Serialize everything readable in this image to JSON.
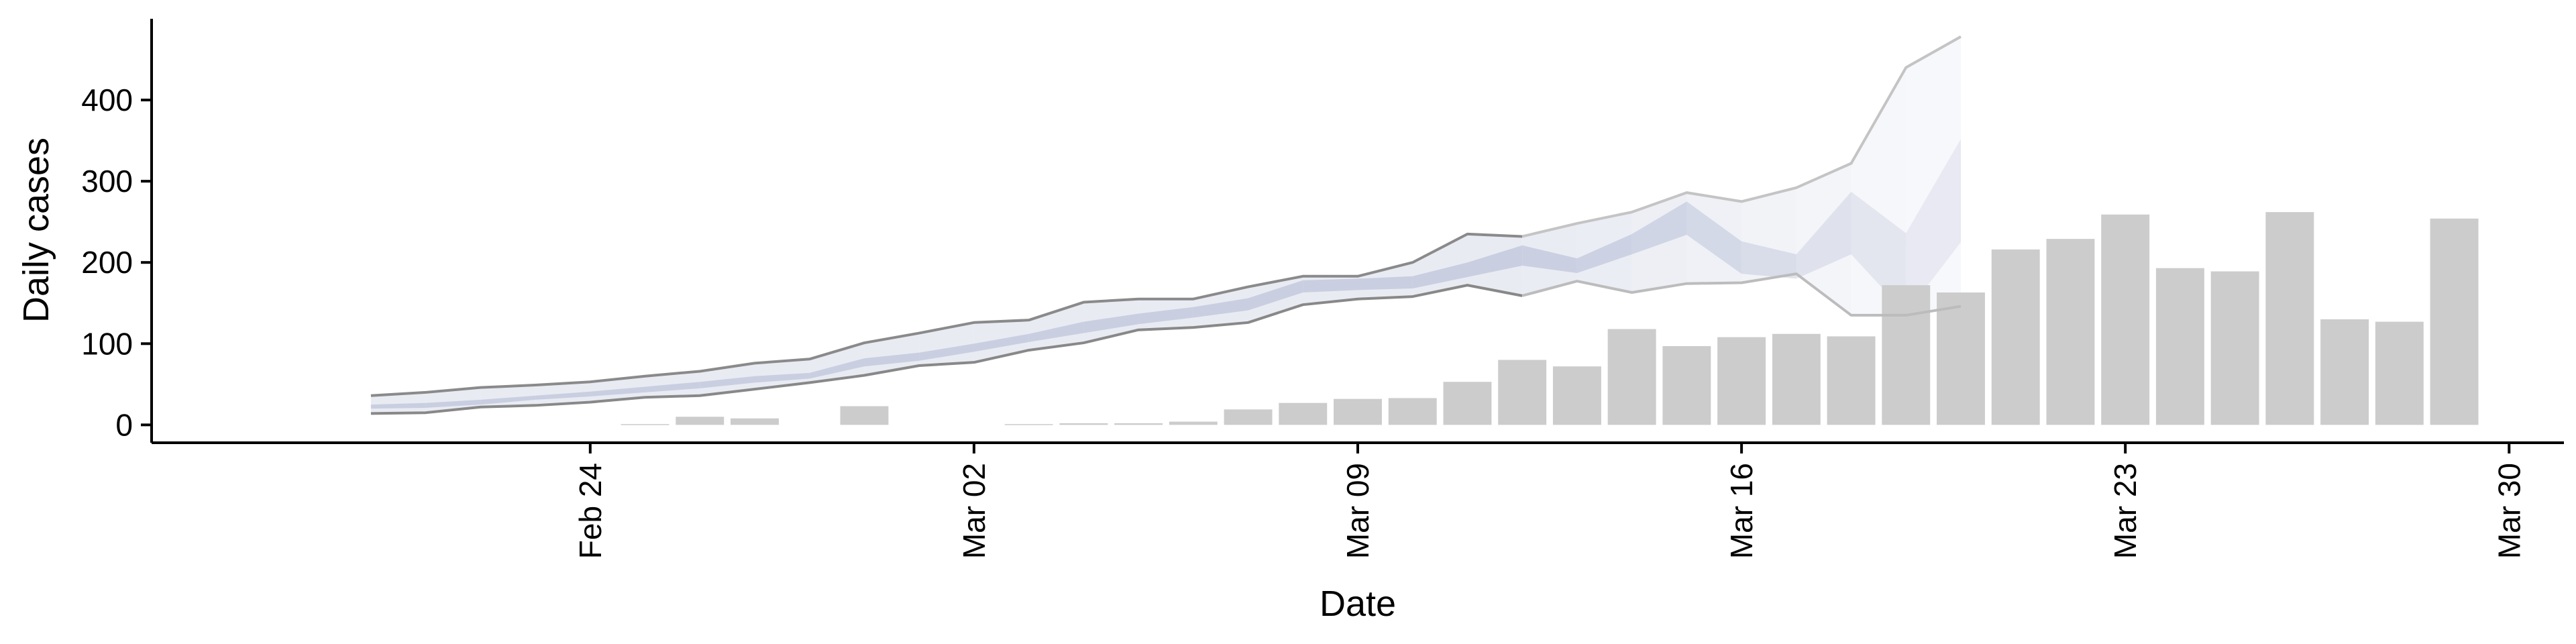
{
  "chart_data": {
    "type": "bar",
    "title": "",
    "xlabel": "Date",
    "ylabel": "Daily cases",
    "x_range": [
      "2020-02-16",
      "2020-03-31"
    ],
    "ylim": [
      -22,
      500
    ],
    "x_ticks": [
      {
        "date": "2020-02-24",
        "label": "Feb 24"
      },
      {
        "date": "2020-03-02",
        "label": "Mar 02"
      },
      {
        "date": "2020-03-09",
        "label": "Mar 09"
      },
      {
        "date": "2020-03-16",
        "label": "Mar 16"
      },
      {
        "date": "2020-03-23",
        "label": "Mar 23"
      },
      {
        "date": "2020-03-30",
        "label": "Mar 30"
      }
    ],
    "y_ticks": [
      0,
      100,
      200,
      300,
      400
    ],
    "grid": false,
    "colors": {
      "bars": "#cccccc",
      "band_outer": "#d6dae8",
      "band_inner": "#b9c0d8",
      "line_lower": "#888888",
      "line_upper": "#8a8a8a",
      "line_upper_late": "#c4c4c4",
      "line_lower_late": "#bcbcbc",
      "axis": "#000000"
    },
    "bars": [
      {
        "date": "2020-02-25",
        "value": 1
      },
      {
        "date": "2020-02-26",
        "value": 10
      },
      {
        "date": "2020-02-27",
        "value": 8
      },
      {
        "date": "2020-02-29",
        "value": 23
      },
      {
        "date": "2020-03-03",
        "value": 1
      },
      {
        "date": "2020-03-04",
        "value": 2
      },
      {
        "date": "2020-03-05",
        "value": 2
      },
      {
        "date": "2020-03-06",
        "value": 4
      },
      {
        "date": "2020-03-07",
        "value": 19
      },
      {
        "date": "2020-03-08",
        "value": 27
      },
      {
        "date": "2020-03-09",
        "value": 32
      },
      {
        "date": "2020-03-10",
        "value": 33
      },
      {
        "date": "2020-03-11",
        "value": 53
      },
      {
        "date": "2020-03-12",
        "value": 80
      },
      {
        "date": "2020-03-13",
        "value": 72
      },
      {
        "date": "2020-03-14",
        "value": 118
      },
      {
        "date": "2020-03-15",
        "value": 97
      },
      {
        "date": "2020-03-16",
        "value": 108
      },
      {
        "date": "2020-03-17",
        "value": 112
      },
      {
        "date": "2020-03-18",
        "value": 109
      },
      {
        "date": "2020-03-19",
        "value": 172
      },
      {
        "date": "2020-03-20",
        "value": 163
      },
      {
        "date": "2020-03-21",
        "value": 216
      },
      {
        "date": "2020-03-22",
        "value": 229
      },
      {
        "date": "2020-03-23",
        "value": 259
      },
      {
        "date": "2020-03-24",
        "value": 193
      },
      {
        "date": "2020-03-25",
        "value": 189
      },
      {
        "date": "2020-03-26",
        "value": 262
      },
      {
        "date": "2020-03-27",
        "value": 130
      },
      {
        "date": "2020-03-28",
        "value": 127
      },
      {
        "date": "2020-03-29",
        "value": 254
      }
    ],
    "band": [
      {
        "date": "2020-02-20",
        "lo": 14,
        "hi": 36,
        "inner_lo": 20,
        "inner_hi": 25,
        "fade": 1
      },
      {
        "date": "2020-02-21",
        "lo": 15,
        "hi": 40,
        "inner_lo": 21,
        "inner_hi": 27,
        "fade": 1
      },
      {
        "date": "2020-02-22",
        "lo": 22,
        "hi": 46,
        "inner_lo": 25,
        "inner_hi": 31,
        "fade": 1
      },
      {
        "date": "2020-02-23",
        "lo": 24,
        "hi": 49,
        "inner_lo": 31,
        "inner_hi": 36,
        "fade": 1
      },
      {
        "date": "2020-02-24",
        "lo": 28,
        "hi": 53,
        "inner_lo": 35,
        "inner_hi": 41,
        "fade": 1
      },
      {
        "date": "2020-02-25",
        "lo": 34,
        "hi": 60,
        "inner_lo": 40,
        "inner_hi": 47,
        "fade": 1
      },
      {
        "date": "2020-02-26",
        "lo": 36,
        "hi": 66,
        "inner_lo": 45,
        "inner_hi": 53,
        "fade": 1
      },
      {
        "date": "2020-02-27",
        "lo": 44,
        "hi": 76,
        "inner_lo": 52,
        "inner_hi": 60,
        "fade": 1
      },
      {
        "date": "2020-02-28",
        "lo": 52,
        "hi": 81,
        "inner_lo": 57,
        "inner_hi": 64,
        "fade": 1
      },
      {
        "date": "2020-02-29",
        "lo": 61,
        "hi": 101,
        "inner_lo": 72,
        "inner_hi": 82,
        "fade": 1
      },
      {
        "date": "2020-03-01",
        "lo": 73,
        "hi": 113,
        "inner_lo": 79,
        "inner_hi": 89,
        "fade": 1
      },
      {
        "date": "2020-03-02",
        "lo": 77,
        "hi": 126,
        "inner_lo": 90,
        "inner_hi": 100,
        "fade": 1
      },
      {
        "date": "2020-03-03",
        "lo": 92,
        "hi": 129,
        "inner_lo": 102,
        "inner_hi": 112,
        "fade": 1
      },
      {
        "date": "2020-03-04",
        "lo": 101,
        "hi": 151,
        "inner_lo": 113,
        "inner_hi": 127,
        "fade": 1
      },
      {
        "date": "2020-03-05",
        "lo": 117,
        "hi": 155,
        "inner_lo": 124,
        "inner_hi": 137,
        "fade": 1
      },
      {
        "date": "2020-03-06",
        "lo": 120,
        "hi": 155,
        "inner_lo": 132,
        "inner_hi": 145,
        "fade": 1
      },
      {
        "date": "2020-03-07",
        "lo": 126,
        "hi": 170,
        "inner_lo": 141,
        "inner_hi": 156,
        "fade": 1
      },
      {
        "date": "2020-03-08",
        "lo": 148,
        "hi": 183,
        "inner_lo": 163,
        "inner_hi": 178,
        "fade": 1
      },
      {
        "date": "2020-03-09",
        "lo": 155,
        "hi": 183,
        "inner_lo": 166,
        "inner_hi": 180,
        "fade": 1
      },
      {
        "date": "2020-03-10",
        "lo": 158,
        "hi": 200,
        "inner_lo": 168,
        "inner_hi": 183,
        "fade": 1
      },
      {
        "date": "2020-03-11",
        "lo": 172,
        "hi": 235,
        "inner_lo": 182,
        "inner_hi": 200,
        "fade": 1
      },
      {
        "date": "2020-03-12",
        "lo": 159,
        "hi": 232,
        "inner_lo": 196,
        "inner_hi": 221,
        "fade": 1
      },
      {
        "date": "2020-03-13",
        "lo": 177,
        "hi": 248,
        "inner_lo": 187,
        "inner_hi": 205,
        "fade": 0.92
      },
      {
        "date": "2020-03-14",
        "lo": 163,
        "hi": 262,
        "inner_lo": 210,
        "inner_hi": 235,
        "fade": 0.85
      },
      {
        "date": "2020-03-15",
        "lo": 174,
        "hi": 286,
        "inner_lo": 234,
        "inner_hi": 275,
        "fade": 0.75
      },
      {
        "date": "2020-03-16",
        "lo": 175,
        "hi": 275,
        "inner_lo": 186,
        "inner_hi": 226,
        "fade": 0.62
      },
      {
        "date": "2020-03-17",
        "lo": 186,
        "hi": 292,
        "inner_lo": 180,
        "inner_hi": 210,
        "fade": 0.5
      },
      {
        "date": "2020-03-18",
        "lo": 135,
        "hi": 322,
        "inner_lo": 210,
        "inner_hi": 287,
        "fade": 0.38
      },
      {
        "date": "2020-03-19",
        "lo": 135,
        "hi": 440,
        "inner_lo": 137,
        "inner_hi": 236,
        "fade": 0.28
      },
      {
        "date": "2020-03-20",
        "lo": 146,
        "hi": 478,
        "inner_lo": 225,
        "inner_hi": 352,
        "fade": 0.18
      }
    ]
  }
}
